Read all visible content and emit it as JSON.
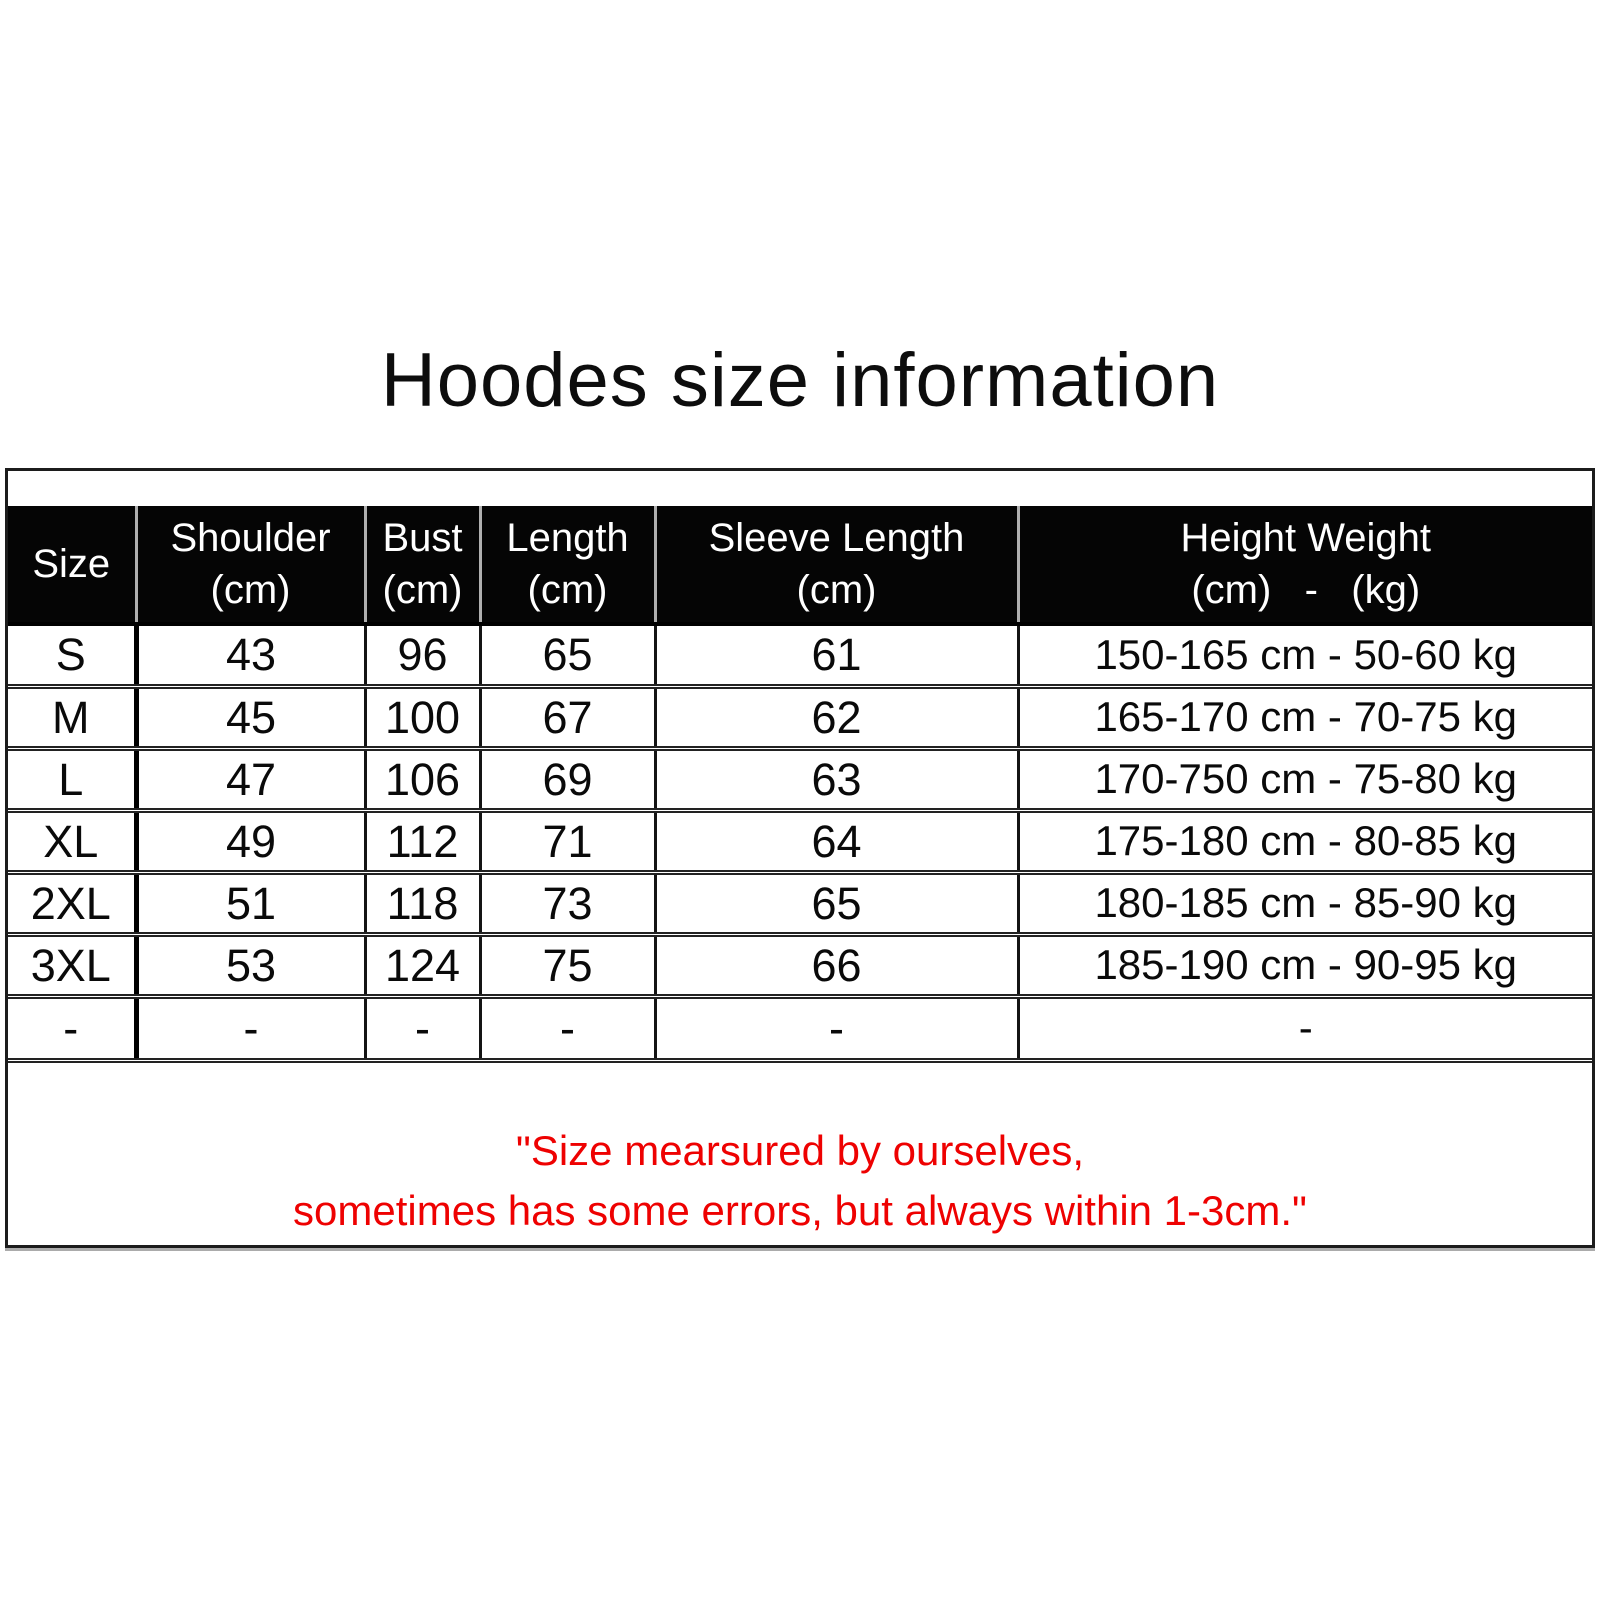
{
  "title": "Hoodes size information",
  "colors": {
    "header_bg": "#050505",
    "header_text": "#ffffff",
    "body_text": "#0a0a0a",
    "note_red": "#ee0101",
    "border": "#1c1c1c"
  },
  "table": {
    "columns": [
      {
        "key": "size",
        "label": "Size",
        "unit": ""
      },
      {
        "key": "shoulder",
        "label": "Shoulder",
        "unit": "(cm)"
      },
      {
        "key": "bust",
        "label": "Bust",
        "unit": "(cm)"
      },
      {
        "key": "length",
        "label": "Length",
        "unit": "(cm)"
      },
      {
        "key": "sleeve",
        "label": "Sleeve Length",
        "unit": "(cm)"
      },
      {
        "key": "height_weight",
        "label": "Height Weight",
        "unit": "(cm)   -   (kg)"
      }
    ],
    "rows": [
      [
        "S",
        "43",
        "96",
        "65",
        "61",
        "150-165 cm - 50-60 kg"
      ],
      [
        "M",
        "45",
        "100",
        "67",
        "62",
        "165-170 cm - 70-75 kg"
      ],
      [
        "L",
        "47",
        "106",
        "69",
        "63",
        "170-750 cm - 75-80 kg"
      ],
      [
        "XL",
        "49",
        "112",
        "71",
        "64",
        "175-180 cm - 80-85 kg"
      ],
      [
        "2XL",
        "51",
        "118",
        "73",
        "65",
        "180-185 cm - 85-90 kg"
      ],
      [
        "3XL",
        "53",
        "124",
        "75",
        "66",
        "185-190 cm - 90-95 kg"
      ],
      [
        "-",
        "-",
        "-",
        "-",
        "-",
        "-"
      ]
    ]
  },
  "note": {
    "line1": "\"Size mearsured by ourselves,",
    "line2": "sometimes has some errors, but always within 1-3cm.\""
  }
}
